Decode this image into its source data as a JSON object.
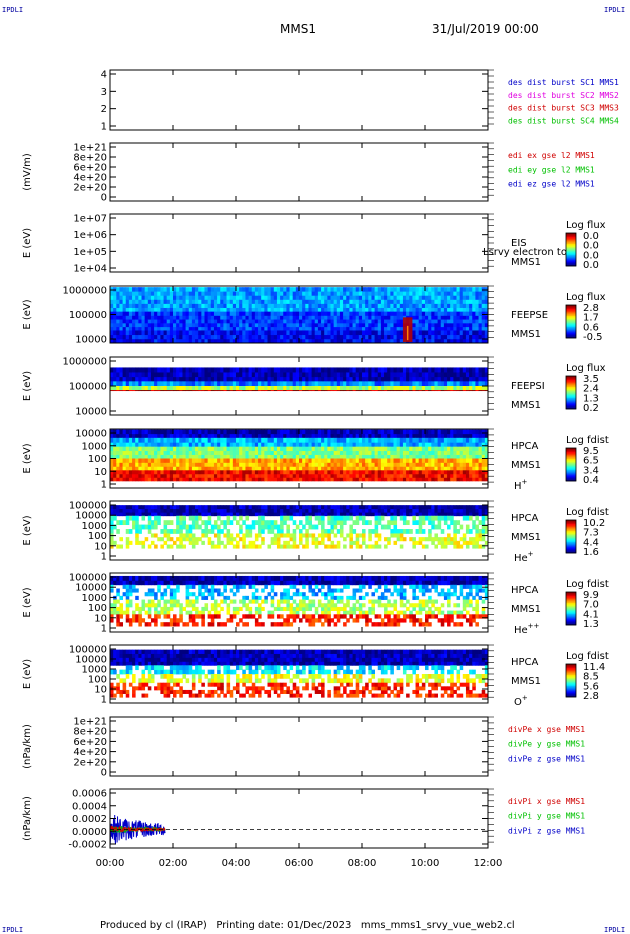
{
  "corners": {
    "tl": "IPDLI",
    "tr": "IPDLI",
    "bl": "IPDLI",
    "br": "IPDLI"
  },
  "header": {
    "spacecraft": "MMS1",
    "date": "31/Jul/2019 00:00"
  },
  "footer": {
    "produced_by": "Produced by cl (IRAP)",
    "printing_date": "Printing date: 01/Dec/2023",
    "file": "mms_mms1_srvy_vue_web2.cl"
  },
  "colors": {
    "mms1": "#0000c8",
    "mms2": "#e000e0",
    "mms3": "#d00000",
    "mms4": "#00c000"
  },
  "chart_data": [
    {
      "type": "line",
      "panel": "des-dist-burst",
      "ylabel": "",
      "yticks": [
        "4",
        "3",
        "2",
        "1"
      ],
      "ylim": [
        0.5,
        4.5
      ],
      "legend": [
        {
          "text": "des dist burst SC1 MMS1",
          "color": "#0000c8"
        },
        {
          "text": "des dist burst SC2 MMS2",
          "color": "#e000e0"
        },
        {
          "text": "des dist burst SC3 MMS3",
          "color": "#d00000"
        },
        {
          "text": "des dist burst SC4 MMS4",
          "color": "#00c000"
        }
      ],
      "series": []
    },
    {
      "type": "line",
      "panel": "edi-e-gse",
      "ylabel": "(mV/m)",
      "yticks": [
        "1e+21",
        "8e+20",
        "6e+20",
        "4e+20",
        "2e+20",
        "0"
      ],
      "ylim": [
        0,
        1.1e+21
      ],
      "zero_line": 0,
      "legend": [
        {
          "text": "edi ex gse l2 MMS1",
          "color": "#d00000"
        },
        {
          "text": "edi ey gse l2 MMS1",
          "color": "#00c000"
        },
        {
          "text": "edi ez gse l2 MMS1",
          "color": "#0000c8"
        }
      ],
      "series": []
    },
    {
      "type": "heatmap",
      "panel": "eis",
      "ylabel": "E (eV)",
      "ylog": true,
      "yticks": [
        "1e+07",
        "1e+06",
        "1e+05",
        "1e+04"
      ],
      "ylim": [
        10000,
        10000000
      ],
      "instrument": [
        "EIS",
        "MMS1"
      ],
      "overlay_label": "Lsrvy electron to",
      "colorbar": {
        "title": "Log flux",
        "ticks": [
          "0.0",
          "0.0",
          "0.0",
          "0.0"
        ]
      },
      "bands": []
    },
    {
      "type": "heatmap",
      "panel": "feeps-e",
      "ylabel": "E (eV)",
      "ylog": true,
      "yticks": [
        "1000000",
        "100000",
        "10000"
      ],
      "ylim": [
        10000,
        1000000
      ],
      "instrument": [
        "FEEPSE",
        "MMS1"
      ],
      "colorbar": {
        "title": "Log flux",
        "ticks": [
          "2.8",
          "1.7",
          "0.6",
          "-0.5"
        ]
      },
      "bands": [
        [
          0.55,
          0.98,
          0.28
        ],
        [
          0.22,
          0.55,
          0.18
        ],
        [
          0.0,
          0.22,
          0.12
        ]
      ],
      "hotspots": [
        {
          "t0": 9.3,
          "t1": 9.6,
          "level": 0.95
        }
      ]
    },
    {
      "type": "heatmap",
      "panel": "feeps-i",
      "ylabel": "E (eV)",
      "ylog": true,
      "yticks": [
        "1000000",
        "100000",
        "10000"
      ],
      "ylim": [
        10000,
        1000000
      ],
      "instrument": [
        "FEEPSI",
        "MMS1"
      ],
      "colorbar": {
        "title": "Log flux",
        "ticks": [
          "3.5",
          "2.4",
          "1.3",
          "0.2"
        ]
      },
      "bands": [
        [
          0.58,
          0.82,
          0.05
        ],
        [
          0.5,
          0.58,
          0.25
        ],
        [
          0.43,
          0.5,
          0.55
        ],
        [
          0.42,
          0.43,
          0.95
        ]
      ]
    },
    {
      "type": "heatmap",
      "panel": "hpca-h",
      "ylabel": "E (eV)",
      "ylog": true,
      "yticks": [
        "10000",
        "1000",
        "100",
        "10",
        "1"
      ],
      "ylim": [
        1,
        30000
      ],
      "instrument": [
        "HPCA",
        "MMS1",
        "H+"
      ],
      "colorbar": {
        "title": "Log fdist",
        "ticks": [
          "9.5",
          "6.5",
          "3.4",
          "0.4"
        ]
      },
      "bands": [
        [
          0.85,
          0.99,
          0.05
        ],
        [
          0.7,
          0.85,
          0.3
        ],
        [
          0.5,
          0.7,
          0.5
        ],
        [
          0.3,
          0.5,
          0.7
        ],
        [
          0.12,
          0.3,
          0.88
        ]
      ]
    },
    {
      "type": "heatmap",
      "panel": "hpca-he",
      "ylabel": "E (eV)",
      "ylog": true,
      "yticks": [
        "100000",
        "10000",
        "1000",
        "100",
        "10",
        "1"
      ],
      "ylim": [
        1,
        100000
      ],
      "instrument": [
        "HPCA",
        "MMS1",
        "He+"
      ],
      "colorbar": {
        "title": "Log fdist",
        "ticks": [
          "10.2",
          "7.3",
          "4.4",
          "1.6"
        ]
      },
      "bands": [
        [
          0.75,
          0.93,
          0.05
        ],
        [
          0.45,
          0.75,
          0.45
        ],
        [
          0.2,
          0.45,
          0.6
        ]
      ]
    },
    {
      "type": "heatmap",
      "panel": "hpca-hepp",
      "ylabel": "E (eV)",
      "ylog": true,
      "yticks": [
        "100000",
        "10000",
        "1000",
        "100",
        "10",
        "1"
      ],
      "ylim": [
        1,
        100000
      ],
      "instrument": [
        "HPCA",
        "MMS1",
        "He++"
      ],
      "colorbar": {
        "title": "Log fdist",
        "ticks": [
          "9.9",
          "7.0",
          "4.1",
          "1.3"
        ]
      },
      "bands": [
        [
          0.8,
          0.95,
          0.05
        ],
        [
          0.55,
          0.8,
          0.3
        ],
        [
          0.3,
          0.55,
          0.55
        ],
        [
          0.1,
          0.3,
          0.85
        ]
      ]
    },
    {
      "type": "heatmap",
      "panel": "hpca-o",
      "ylabel": "E (eV)",
      "ylog": true,
      "yticks": [
        "100000",
        "10000",
        "1000",
        "100",
        "10",
        "1"
      ],
      "ylim": [
        1,
        100000
      ],
      "instrument": [
        "HPCA",
        "MMS1",
        "O+"
      ],
      "colorbar": {
        "title": "Log fdist",
        "ticks": [
          "11.4",
          "8.5",
          "5.6",
          "2.8"
        ]
      },
      "bands": [
        [
          0.65,
          0.92,
          0.05
        ],
        [
          0.5,
          0.65,
          0.35
        ],
        [
          0.35,
          0.5,
          0.6
        ],
        [
          0.1,
          0.35,
          0.85
        ]
      ]
    },
    {
      "type": "line",
      "panel": "divpe",
      "ylabel": "(nPa/km)",
      "yticks": [
        "1e+21",
        "8e+20",
        "6e+20",
        "4e+20",
        "2e+20",
        "0"
      ],
      "ylim": [
        0,
        1.1e+21
      ],
      "zero_line": 0,
      "legend": [
        {
          "text": "divPe x gse MMS1",
          "color": "#d00000"
        },
        {
          "text": "divPe y gse MMS1",
          "color": "#00c000"
        },
        {
          "text": "divPe z gse MMS1",
          "color": "#0000c8"
        }
      ],
      "series": []
    },
    {
      "type": "line",
      "panel": "divpi",
      "ylabel": "(nPa/km)",
      "yticks": [
        "0.0006",
        "0.0004",
        "0.0002",
        "0.0000",
        "-0.0002"
      ],
      "ylim": [
        -0.0003,
        0.00065
      ],
      "zero_line": 0,
      "legend": [
        {
          "text": "divPi x gse MMS1",
          "color": "#d00000"
        },
        {
          "text": "divPi y gse MMS1",
          "color": "#00c000"
        },
        {
          "text": "divPi z gse MMS1",
          "color": "#0000c8"
        }
      ],
      "series": [
        {
          "name": "divPi x gse MMS1",
          "color": "#d00000",
          "t_range": [
            0.0,
            1.75
          ],
          "amplitude": 4e-05
        },
        {
          "name": "divPi y gse MMS1",
          "color": "#00c000",
          "t_range": [
            0.0,
            1.75
          ],
          "amplitude": 5e-05
        },
        {
          "name": "divPi z gse MMS1",
          "color": "#0000c8",
          "t_range": [
            0.0,
            1.75
          ],
          "amplitude": 0.0002
        }
      ]
    }
  ],
  "xaxis": {
    "ticks": [
      "00:00",
      "02:00",
      "04:00",
      "06:00",
      "08:00",
      "10:00",
      "12:00"
    ],
    "xlim": [
      0,
      12
    ]
  }
}
